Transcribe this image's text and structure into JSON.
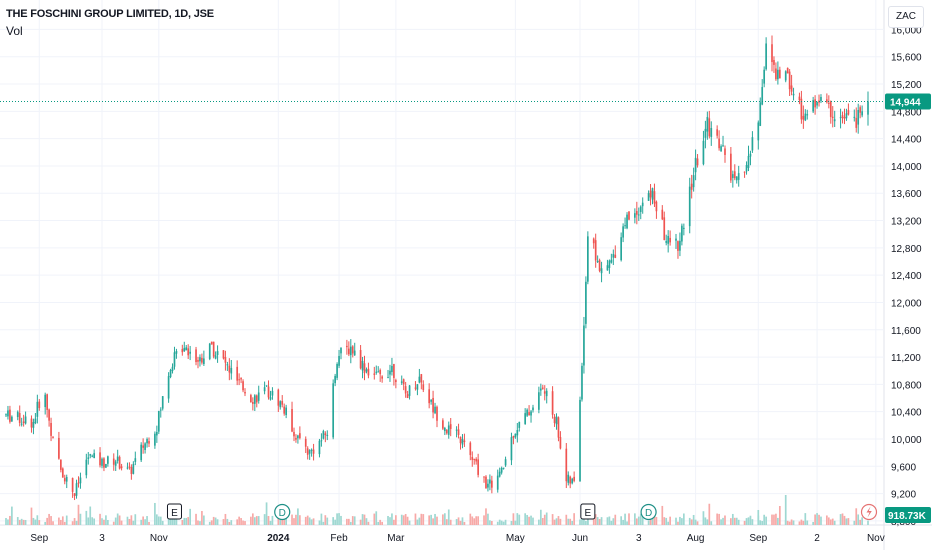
{
  "header": {
    "title": "THE FOSCHINI GROUP LIMITED, 1D, JSE",
    "volume_label": "Vol",
    "currency": "ZAC"
  },
  "markers": [
    {
      "letter": "E",
      "date": "2023-11-09"
    },
    {
      "letter": "D",
      "date": "2024-01-03"
    },
    {
      "letter": "E",
      "date": "2024-06-07"
    },
    {
      "letter": "D",
      "date": "2024-07-08"
    }
  ],
  "colors": {
    "up": "#26a69a",
    "down": "#ef5350",
    "up_volume": "#9ed8d2",
    "down_volume": "#f7a9a7",
    "last_price_line": "#089981",
    "volume_tag": "#089981"
  },
  "chart_data": {
    "type": "candlestick",
    "title": "THE FOSCHINI GROUP LIMITED, 1D, JSE",
    "x_tick_labels": [
      "Sep",
      "3",
      "Nov",
      "2024",
      "Feb",
      "Mar",
      "May",
      "Jun",
      "3",
      "Aug",
      "Sep",
      "2",
      "Nov"
    ],
    "x_tick_dates": [
      "2023-09-01",
      "2023-10-03",
      "2023-11-01",
      "2024-01-01",
      "2024-02-01",
      "2024-03-01",
      "2024-05-01",
      "2024-06-03",
      "2024-07-03",
      "2024-08-01",
      "2024-09-02",
      "2024-10-02",
      "2024-11-01"
    ],
    "y_tick_labels": [
      "16,000",
      "15,600",
      "15,200",
      "14,800",
      "14,400",
      "14,000",
      "13,600",
      "13,200",
      "12,800",
      "12,400",
      "12,000",
      "11,600",
      "11,200",
      "10,800",
      "10,400",
      "10,000",
      "9,600",
      "9,200",
      "8,800"
    ],
    "y_range": [
      8740,
      16050
    ],
    "last_price": 14944,
    "last_price_label": "14,944",
    "volume_last_label": "918.73K",
    "series": [
      {
        "name": "Close",
        "x": [
          "2023-08-15",
          "2023-08-29",
          "2023-09-01",
          "2023-09-04",
          "2023-09-08",
          "2023-09-12",
          "2023-09-19",
          "2023-09-26",
          "2023-10-03",
          "2023-10-10",
          "2023-10-17",
          "2023-10-24",
          "2023-10-31",
          "2023-11-07",
          "2023-11-14",
          "2023-11-21",
          "2023-11-28",
          "2023-12-05",
          "2023-12-12",
          "2023-12-19",
          "2023-12-27",
          "2024-01-03",
          "2024-01-10",
          "2024-01-17",
          "2024-01-22",
          "2024-01-26",
          "2024-01-31",
          "2024-02-07",
          "2024-02-14",
          "2024-02-21",
          "2024-02-28",
          "2024-03-06",
          "2024-03-13",
          "2024-03-20",
          "2024-03-27",
          "2024-04-03",
          "2024-04-10",
          "2024-04-17",
          "2024-04-24",
          "2024-04-30",
          "2024-05-08",
          "2024-05-15",
          "2024-05-22",
          "2024-05-27",
          "2024-05-31",
          "2024-06-03",
          "2024-06-05",
          "2024-06-07",
          "2024-06-11",
          "2024-06-14",
          "2024-06-19",
          "2024-06-26",
          "2024-07-03",
          "2024-07-10",
          "2024-07-17",
          "2024-07-24",
          "2024-07-31",
          "2024-08-07",
          "2024-08-14",
          "2024-08-21",
          "2024-08-28",
          "2024-09-02",
          "2024-09-06",
          "2024-09-11",
          "2024-09-16",
          "2024-09-19",
          "2024-09-23",
          "2024-09-27",
          "2024-10-02",
          "2024-10-07",
          "2024-10-14",
          "2024-10-21",
          "2024-10-28"
        ],
        "close": [
          10350,
          10250,
          10550,
          10600,
          9950,
          9550,
          9200,
          9750,
          9650,
          9700,
          9500,
          9900,
          10200,
          11100,
          11400,
          11150,
          11350,
          11100,
          10800,
          10600,
          10700,
          10500,
          10050,
          9800,
          9950,
          10100,
          11200,
          11350,
          11050,
          10900,
          11050,
          10650,
          10900,
          10450,
          10150,
          10000,
          9650,
          9300,
          9500,
          10100,
          10400,
          10750,
          10250,
          9400,
          9350,
          10600,
          11700,
          13000,
          12700,
          12400,
          12600,
          13200,
          13400,
          13600,
          12900,
          12850,
          13900,
          14600,
          14300,
          13700,
          14100,
          14650,
          15800,
          15300,
          15400,
          15150,
          14850,
          14700,
          15000,
          14850,
          14700,
          14650,
          14944
        ],
        "ohlc_note": "approximate daily path"
      },
      {
        "name": "Vol",
        "x": [
          "2023-08-15",
          "2023-09-01",
          "2023-10-03",
          "2023-11-01",
          "2023-11-09",
          "2024-01-03",
          "2024-02-01",
          "2024-03-01",
          "2024-05-01",
          "2024-06-07",
          "2024-07-03",
          "2024-08-01",
          "2024-09-02",
          "2024-09-16",
          "2024-10-02",
          "2024-10-28"
        ],
        "volume": [
          400,
          900,
          500,
          500,
          900,
          700,
          700,
          500,
          600,
          1500,
          700,
          700,
          1100,
          2200,
          700,
          918.73
        ]
      }
    ],
    "volume_unit": "K",
    "grid": true,
    "legend": "none"
  }
}
